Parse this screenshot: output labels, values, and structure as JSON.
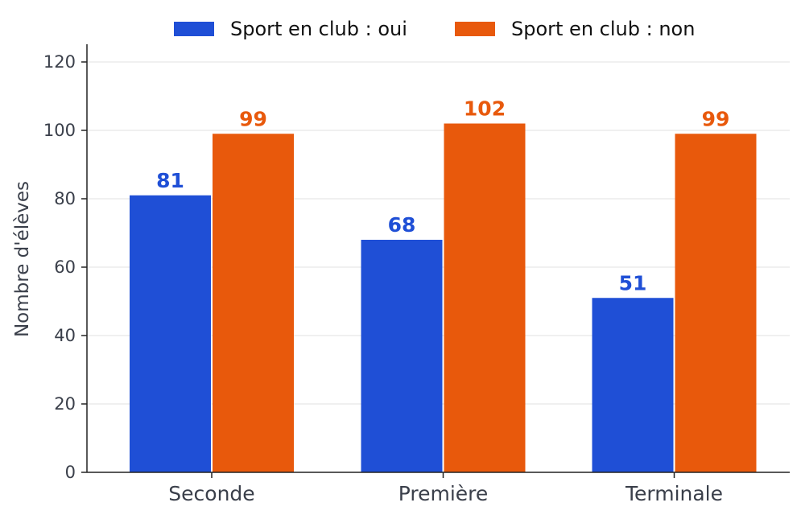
{
  "chart_data": {
    "type": "bar",
    "categories": [
      "Seconde",
      "Première",
      "Terminale"
    ],
    "series": [
      {
        "name": "Sport en club : oui",
        "values": [
          81,
          68,
          51
        ],
        "color": "#1f4fd6"
      },
      {
        "name": "Sport en club : non",
        "values": [
          99,
          102,
          99
        ],
        "color": "#e8590c"
      }
    ],
    "ylabel": "Nombre d'élèves",
    "xlabel": "",
    "ylim": [
      0,
      125
    ],
    "yticks": [
      0,
      20,
      40,
      60,
      80,
      100,
      120
    ],
    "grid": "horizontal",
    "legend_position": "top-center"
  }
}
